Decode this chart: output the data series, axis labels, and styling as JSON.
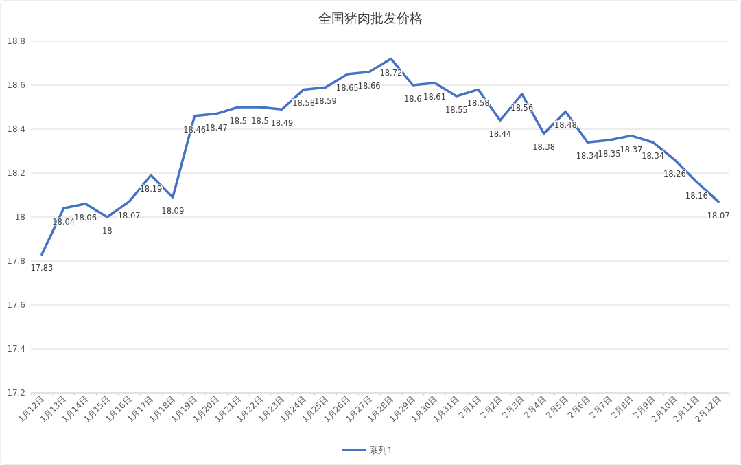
{
  "chart_data": {
    "type": "line",
    "title": "全国猪肉批发价格",
    "categories": [
      "1月12日",
      "1月13日",
      "1月14日",
      "1月15日",
      "1月16日",
      "1月17日",
      "1月18日",
      "1月19日",
      "1月20日",
      "1月21日",
      "1月22日",
      "1月23日",
      "1月24日",
      "1月25日",
      "1月26日",
      "1月27日",
      "1月28日",
      "1月29日",
      "1月30日",
      "1月31日",
      "2月1日",
      "2月2日",
      "2月3日",
      "2月4日",
      "2月5日",
      "2月6日",
      "2月7日",
      "2月8日",
      "2月9日",
      "2月10日",
      "2月11日",
      "2月12日"
    ],
    "series": [
      {
        "name": "系列1",
        "color": "#4472c4",
        "values": [
          17.83,
          18.04,
          18.06,
          18,
          18.07,
          18.19,
          18.09,
          18.46,
          18.47,
          18.5,
          18.5,
          18.49,
          18.58,
          18.59,
          18.65,
          18.66,
          18.72,
          18.6,
          18.61,
          18.55,
          18.58,
          18.44,
          18.56,
          18.38,
          18.48,
          18.34,
          18.35,
          18.37,
          18.34,
          18.26,
          18.16,
          18.07
        ]
      }
    ],
    "ylim": [
      17.2,
      18.8
    ],
    "yticks": [
      17.2,
      17.4,
      17.6,
      17.8,
      18,
      18.2,
      18.4,
      18.6,
      18.8
    ],
    "grid": "y",
    "legend": "bottom",
    "data_labels": true
  }
}
